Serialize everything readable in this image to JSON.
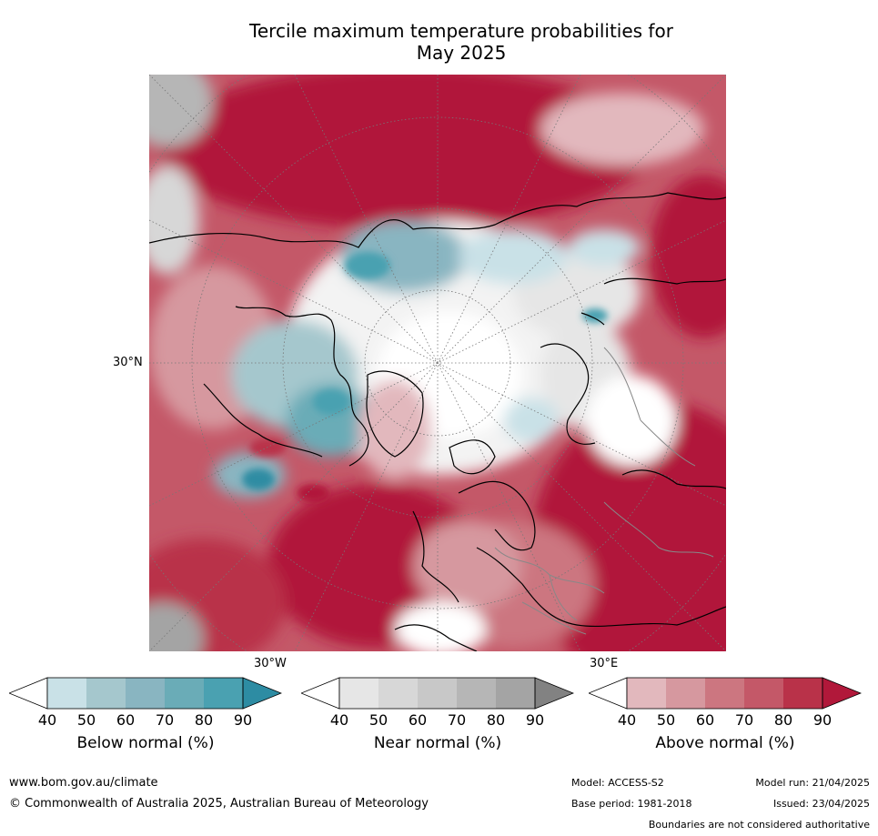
{
  "title_line1": "Tercile maximum temperature probabilities for",
  "title_line2": "May 2025",
  "map": {
    "lat_label": "30°N",
    "lon_label_left": "30°W",
    "lon_label_right": "30°E"
  },
  "colorbars": [
    {
      "label": "Below normal (%)",
      "ticks": [
        "40",
        "50",
        "60",
        "70",
        "80",
        "90"
      ],
      "colors": [
        "#ffffff",
        "#c9e1e7",
        "#a5c7cd",
        "#89b5c1",
        "#6aacb7",
        "#4aa1b1",
        "#2d8ca3"
      ]
    },
    {
      "label": "Near normal (%)",
      "ticks": [
        "40",
        "50",
        "60",
        "70",
        "80",
        "90"
      ],
      "colors": [
        "#ffffff",
        "#e6e6e6",
        "#d7d7d7",
        "#c8c8c8",
        "#b6b6b6",
        "#a4a4a4",
        "#828282"
      ]
    },
    {
      "label": "Above normal (%)",
      "ticks": [
        "40",
        "50",
        "60",
        "70",
        "80",
        "90"
      ],
      "colors": [
        "#ffffff",
        "#e2b8bd",
        "#d6989f",
        "#cc7680",
        "#c45868",
        "#b93249",
        "#b1183a"
      ]
    }
  ],
  "footer": {
    "website": "www.bom.gov.au/climate",
    "copyright": "© Commonwealth of Australia 2025, Australian Bureau of Meteorology",
    "model": "Model: ACCESS-S2",
    "base_period": "Base period: 1981-2018",
    "model_run": "Model run: 21/04/2025",
    "issued": "Issued: 23/04/2025",
    "disclaimer": "Boundaries are not considered authoritative"
  }
}
